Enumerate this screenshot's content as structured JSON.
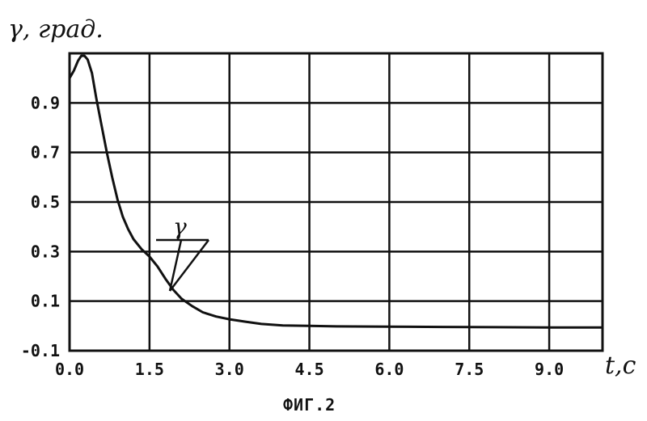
{
  "chart_data": {
    "type": "line",
    "title": "",
    "xlabel": "t,c",
    "ylabel": "γ, град.",
    "xlim": [
      0,
      10
    ],
    "ylim": [
      -0.1,
      1.1
    ],
    "x_ticks": [
      0.0,
      1.5,
      3.0,
      4.5,
      6.0,
      7.5,
      9.0
    ],
    "x_tick_labels": [
      "0.0",
      "1.5",
      "3.0",
      "4.5",
      "6.0",
      "7.5",
      "9.0"
    ],
    "y_ticks": [
      0.9,
      0.7,
      0.5,
      0.3,
      0.1,
      -0.1
    ],
    "y_tick_labels": [
      "0.9",
      "0.7",
      "0.5",
      "0.3",
      "0.1",
      "-0.1"
    ],
    "grid": true,
    "series": [
      {
        "name": "γ",
        "x": [
          0.0,
          0.08,
          0.16,
          0.22,
          0.28,
          0.34,
          0.42,
          0.5,
          0.6,
          0.7,
          0.8,
          0.9,
          1.0,
          1.1,
          1.2,
          1.35,
          1.5,
          1.65,
          1.8,
          1.95,
          2.1,
          2.3,
          2.5,
          2.75,
          3.0,
          3.3,
          3.6,
          4.0,
          4.5,
          5.0,
          6.0,
          7.0,
          8.0,
          9.0,
          10.0
        ],
        "y": [
          1.0,
          1.03,
          1.07,
          1.09,
          1.09,
          1.075,
          1.02,
          0.92,
          0.81,
          0.7,
          0.6,
          0.51,
          0.44,
          0.39,
          0.35,
          0.31,
          0.28,
          0.24,
          0.19,
          0.145,
          0.11,
          0.08,
          0.055,
          0.038,
          0.027,
          0.017,
          0.008,
          0.002,
          0.0,
          -0.002,
          -0.003,
          -0.004,
          -0.005,
          -0.006,
          -0.006
        ]
      }
    ],
    "annotations": [
      {
        "text": "γ",
        "points_to_x": 1.95,
        "points_to_y": 0.145
      }
    ]
  },
  "caption": "ФИГ.2"
}
